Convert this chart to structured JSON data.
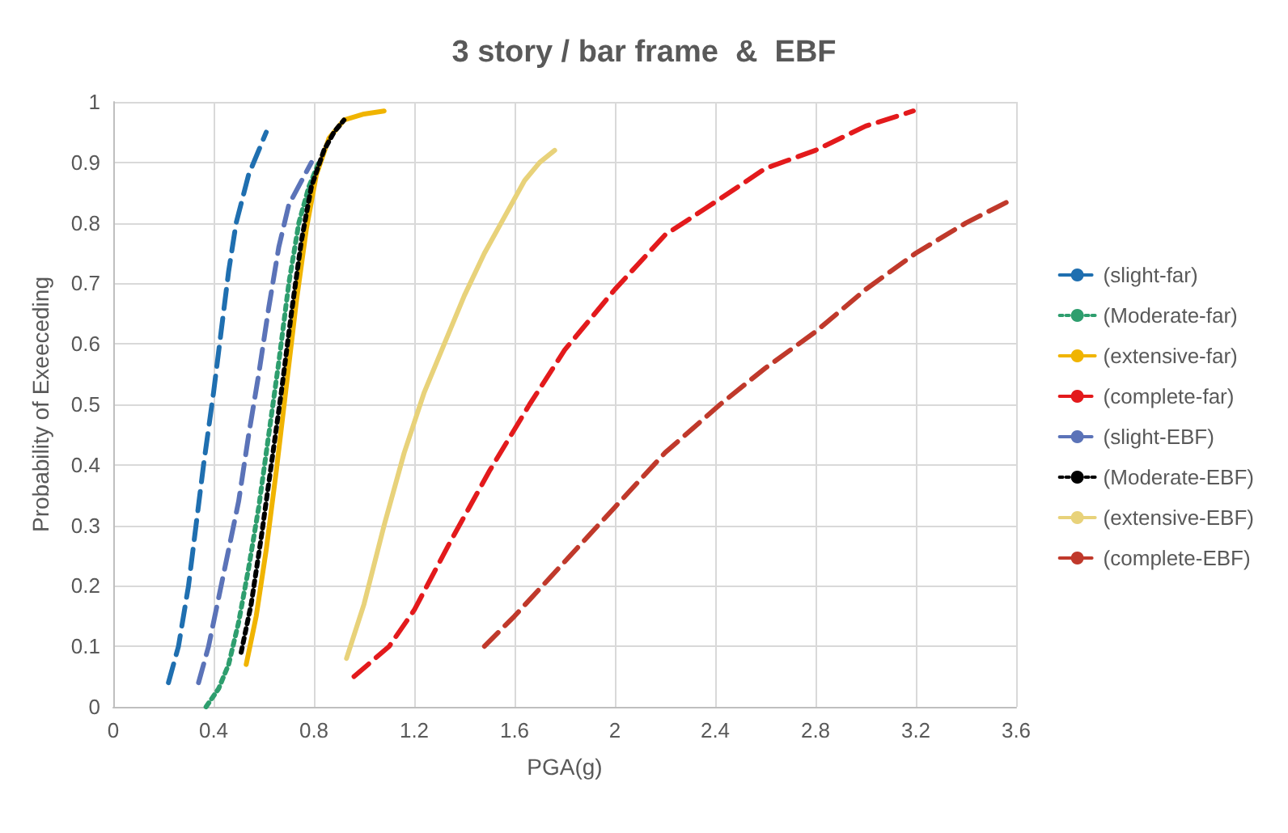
{
  "chart_data": {
    "type": "line",
    "title": "3 story / bar frame  &  EBF",
    "xlabel": "PGA(g)",
    "ylabel": "Probability of Exeeceding",
    "xlim": [
      0,
      3.6
    ],
    "xticks": [
      0,
      0.4,
      0.8,
      1.2,
      1.6,
      2,
      2.4,
      2.8,
      3.2,
      3.6
    ],
    "ylim": [
      0,
      1
    ],
    "yticks": [
      0,
      0.1,
      0.2,
      0.3,
      0.4,
      0.5,
      0.6,
      0.7,
      0.8,
      0.9,
      1
    ],
    "grid": true,
    "legend": "right",
    "marker": "none",
    "series": [
      {
        "name": "(slight-far)",
        "color": "#1f6fb0",
        "line_style": "dashed",
        "x": [
          0.22,
          0.26,
          0.3,
          0.33,
          0.36,
          0.4,
          0.43,
          0.46,
          0.49,
          0.54,
          0.61
        ],
        "values": [
          0.04,
          0.1,
          0.2,
          0.3,
          0.4,
          0.52,
          0.62,
          0.72,
          0.8,
          0.88,
          0.95
        ]
      },
      {
        "name": "(Moderate-far)",
        "color": "#2e9e6e",
        "line_style": "dotted",
        "x": [
          0.37,
          0.42,
          0.46,
          0.5,
          0.54,
          0.58,
          0.62,
          0.66,
          0.7,
          0.74,
          0.78,
          0.82
        ],
        "values": [
          0.0,
          0.03,
          0.07,
          0.14,
          0.23,
          0.33,
          0.45,
          0.57,
          0.7,
          0.8,
          0.86,
          0.9
        ]
      },
      {
        "name": "(extensive-far)",
        "color": "#f0b400",
        "line_style": "solid",
        "x": [
          0.53,
          0.57,
          0.61,
          0.65,
          0.69,
          0.73,
          0.77,
          0.81,
          0.86,
          0.92,
          1.0,
          1.08
        ],
        "values": [
          0.07,
          0.15,
          0.26,
          0.39,
          0.53,
          0.67,
          0.79,
          0.88,
          0.94,
          0.97,
          0.98,
          0.985
        ]
      },
      {
        "name": "(complete-far)",
        "color": "#e31a1c",
        "line_style": "dashed",
        "x": [
          0.96,
          1.1,
          1.2,
          1.34,
          1.5,
          1.66,
          1.8,
          2.0,
          2.2,
          2.42,
          2.6,
          2.8,
          3.0,
          3.19
        ],
        "values": [
          0.05,
          0.1,
          0.16,
          0.27,
          0.39,
          0.5,
          0.59,
          0.69,
          0.78,
          0.84,
          0.89,
          0.92,
          0.96,
          0.985
        ]
      },
      {
        "name": "(slight-EBF)",
        "color": "#5b73b8",
        "line_style": "dashed",
        "x": [
          0.34,
          0.38,
          0.42,
          0.46,
          0.5,
          0.54,
          0.58,
          0.62,
          0.66,
          0.7,
          0.79
        ],
        "values": [
          0.04,
          0.1,
          0.18,
          0.26,
          0.34,
          0.45,
          0.55,
          0.66,
          0.76,
          0.83,
          0.9
        ]
      },
      {
        "name": "(Moderate-EBF)",
        "color": "#000000",
        "line_style": "dotted",
        "x": [
          0.51,
          0.55,
          0.59,
          0.63,
          0.67,
          0.71,
          0.75,
          0.79,
          0.84,
          0.88,
          0.92
        ],
        "values": [
          0.09,
          0.17,
          0.28,
          0.4,
          0.52,
          0.65,
          0.77,
          0.86,
          0.92,
          0.95,
          0.97
        ]
      },
      {
        "name": "(extensive-EBF)",
        "color": "#e8d27a",
        "line_style": "solid",
        "x": [
          0.93,
          1.0,
          1.08,
          1.16,
          1.24,
          1.32,
          1.4,
          1.48,
          1.56,
          1.64,
          1.7,
          1.76
        ],
        "values": [
          0.08,
          0.17,
          0.3,
          0.42,
          0.52,
          0.6,
          0.68,
          0.75,
          0.81,
          0.87,
          0.9,
          0.92
        ]
      },
      {
        "name": "(complete-EBF)",
        "color": "#c0392b",
        "line_style": "dashed",
        "x": [
          1.48,
          1.6,
          1.8,
          2.0,
          2.2,
          2.42,
          2.6,
          2.8,
          3.0,
          3.2,
          3.4,
          3.59
        ],
        "values": [
          0.1,
          0.15,
          0.24,
          0.33,
          0.42,
          0.5,
          0.56,
          0.62,
          0.69,
          0.75,
          0.8,
          0.84
        ]
      }
    ]
  }
}
